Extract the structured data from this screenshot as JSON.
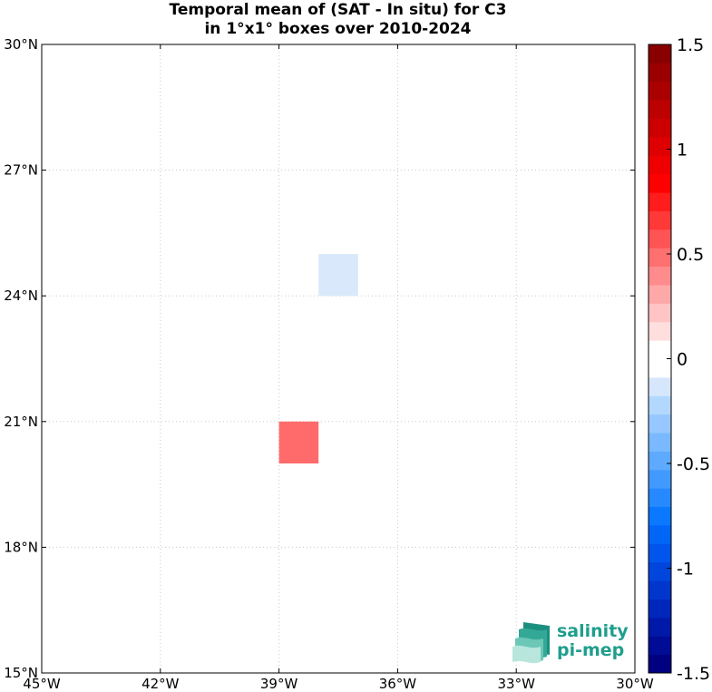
{
  "title": {
    "line1": "Temporal mean of (SAT - In situ) for C3",
    "line2": "in 1°x1° boxes over 2010-2024"
  },
  "map": {
    "lon_range": [
      -45,
      -30
    ],
    "lat_range": [
      15,
      30
    ],
    "grid": "dotted",
    "x_ticks": [
      {
        "value": -45,
        "label": "45°W"
      },
      {
        "value": -42,
        "label": "42°W"
      },
      {
        "value": -39,
        "label": "39°W"
      },
      {
        "value": -36,
        "label": "36°W"
      },
      {
        "value": -33,
        "label": "33°W"
      },
      {
        "value": -30,
        "label": "30°W"
      }
    ],
    "y_ticks": [
      {
        "value": 30,
        "label": "30°N"
      },
      {
        "value": 27,
        "label": "27°N"
      },
      {
        "value": 24,
        "label": "24°N"
      },
      {
        "value": 21,
        "label": "21°N"
      },
      {
        "value": 18,
        "label": "18°N"
      },
      {
        "value": 15,
        "label": "15°N"
      }
    ],
    "cells": [
      {
        "lon": -38,
        "lat": 24,
        "value": -0.1,
        "color": "#d9e9fb"
      },
      {
        "lon": -39,
        "lat": 20,
        "value": 0.5,
        "color": "#ff6b6b"
      }
    ]
  },
  "colorbar": {
    "range": [
      -1.5,
      1.5
    ],
    "colors": [
      "#000080",
      "#000c96",
      "#0019a8",
      "#0027bb",
      "#0036cc",
      "#0046dc",
      "#0056ec",
      "#0066f8",
      "#0a78ff",
      "#2689ff",
      "#4299ff",
      "#5eaaff",
      "#7ab9ff",
      "#96c8ff",
      "#b2d8fd",
      "#d6e7fb",
      "#ffffff",
      "#ffffff",
      "#ffdede",
      "#ffc4c4",
      "#ffa8a8",
      "#ff8c8c",
      "#ff7070",
      "#ff5454",
      "#ff3838",
      "#ff1c1c",
      "#ff0000",
      "#ef0000",
      "#de0000",
      "#cd0000",
      "#bc0000",
      "#ab0000",
      "#9a0000",
      "#880000"
    ],
    "ticks": [
      {
        "value": 1.5,
        "label": "1.5"
      },
      {
        "value": 1,
        "label": "1"
      },
      {
        "value": 0.5,
        "label": "0.5"
      },
      {
        "value": 0,
        "label": "0"
      },
      {
        "value": -0.5,
        "label": "-0.5"
      },
      {
        "value": -1,
        "label": "-1"
      },
      {
        "value": -1.5,
        "label": "-1.5"
      }
    ]
  },
  "logo": {
    "line1": "salinity",
    "line2": "pi-mep"
  }
}
